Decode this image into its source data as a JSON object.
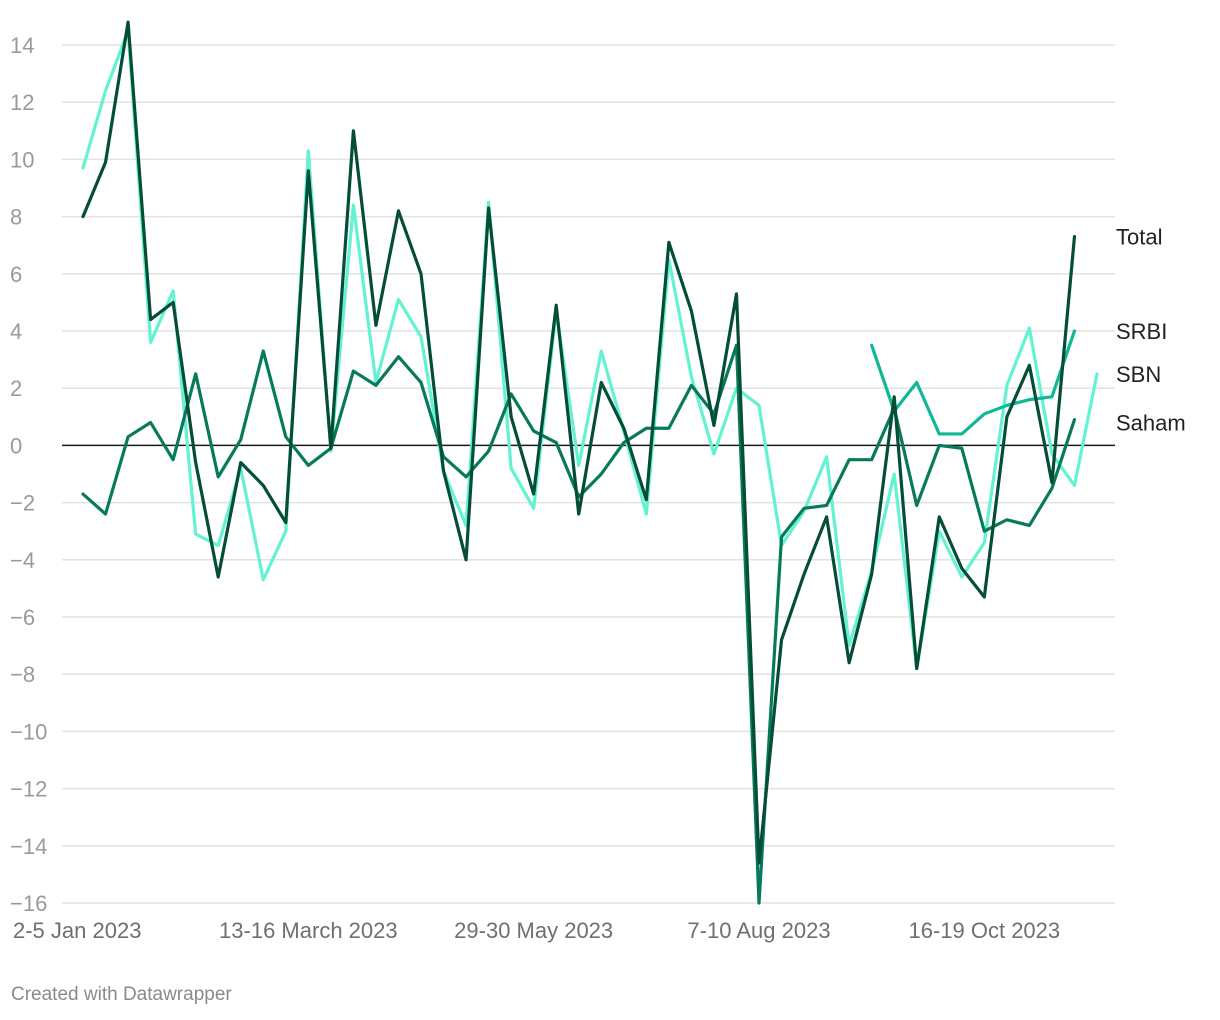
{
  "chart_data": {
    "type": "line",
    "ylim": [
      -16,
      14
    ],
    "y_ticks": [
      14,
      12,
      10,
      8,
      6,
      4,
      2,
      0,
      -2,
      -4,
      -6,
      -8,
      -10,
      -12,
      -14,
      -16
    ],
    "y_tick_labels": [
      "14",
      "12",
      "10",
      "8",
      "6",
      "4",
      "2",
      "0",
      "−2",
      "−4",
      "−6",
      "−8",
      "−10",
      "−12",
      "−14",
      "−16"
    ],
    "grid": true,
    "x_count": 46,
    "x_tick_labels": [
      {
        "index": 0,
        "label": "2-5 Jan 2023"
      },
      {
        "index": 10,
        "label": "13-16 March 2023"
      },
      {
        "index": 20,
        "label": "29-30 May 2023"
      },
      {
        "index": 30,
        "label": "7-10 Aug 2023"
      },
      {
        "index": 40,
        "label": "16-19 Oct 2023"
      }
    ],
    "series": [
      {
        "name": "SBN",
        "color": "#63f2d2",
        "values": [
          9.7,
          12.4,
          14.5,
          3.6,
          5.4,
          -3.1,
          -3.5,
          -0.8,
          -4.7,
          -3.0,
          10.3,
          -0.2,
          8.4,
          2.2,
          5.1,
          3.8,
          -0.9,
          -2.8,
          8.5,
          -0.8,
          -2.2,
          4.7,
          -0.7,
          3.3,
          0.5,
          -2.4,
          6.5,
          2.4,
          -0.3,
          2.0,
          1.4,
          -3.5,
          -2.3,
          -0.4,
          -7.0,
          -4.4,
          -1.0,
          -7.8,
          -3.0,
          -4.6,
          -3.4,
          2.1,
          4.1,
          -0.3,
          -1.4,
          2.5
        ]
      },
      {
        "name": "Saham",
        "color": "#087a5c",
        "values": [
          -1.7,
          -2.4,
          0.3,
          0.8,
          -0.5,
          2.5,
          -1.1,
          0.2,
          3.3,
          0.3,
          -0.7,
          -0.1,
          2.6,
          2.1,
          3.1,
          2.2,
          -0.4,
          -1.1,
          -0.2,
          1.8,
          0.5,
          0.1,
          -1.8,
          -1.0,
          0.1,
          0.6,
          0.6,
          2.1,
          1.1,
          3.5,
          -16.0,
          -3.2,
          -2.2,
          -2.1,
          -0.5,
          -0.5,
          1.3,
          -2.1,
          0.0,
          -0.1,
          -3.0,
          -2.6,
          -2.8,
          -1.5,
          0.9,
          null
        ]
      },
      {
        "name": "SRBI",
        "color": "#0fb896",
        "values": [
          null,
          null,
          null,
          null,
          null,
          null,
          null,
          null,
          null,
          null,
          null,
          null,
          null,
          null,
          null,
          null,
          null,
          null,
          null,
          null,
          null,
          null,
          null,
          null,
          null,
          null,
          null,
          null,
          null,
          null,
          null,
          null,
          null,
          null,
          null,
          3.5,
          1.2,
          2.2,
          0.4,
          0.4,
          1.1,
          1.4,
          1.6,
          1.7,
          4.0,
          null
        ]
      },
      {
        "name": "Total",
        "color": "#044d36",
        "values": [
          8.0,
          9.9,
          14.8,
          4.4,
          5.0,
          -0.6,
          -4.6,
          -0.6,
          -1.4,
          -2.7,
          9.6,
          -0.1,
          11.0,
          4.2,
          8.2,
          6.0,
          -0.9,
          -4.0,
          8.3,
          1.0,
          -1.7,
          4.9,
          -2.4,
          2.2,
          0.6,
          -1.9,
          7.1,
          4.7,
          0.7,
          5.3,
          -14.6,
          -6.8,
          -4.5,
          -2.5,
          -7.6,
          -4.5,
          1.7,
          -7.8,
          -2.5,
          -4.3,
          -5.3,
          1.0,
          2.8,
          -1.3,
          7.3,
          null
        ]
      }
    ],
    "series_label_y": {
      "Total": 7.3,
      "SRBI": 4.0,
      "SBN": 2.5,
      "Saham": 0.8
    }
  },
  "credit": "Created with Datawrapper"
}
